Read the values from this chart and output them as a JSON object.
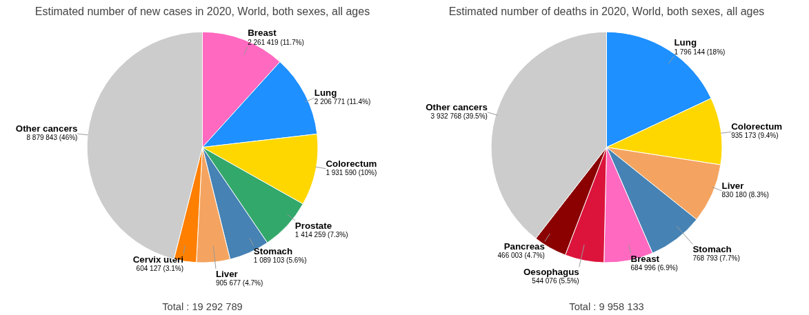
{
  "chart_data": [
    {
      "type": "pie",
      "title": "Estimated number of new cases in 2020, World, both sexes, all ages",
      "categories": [
        "Breast",
        "Lung",
        "Colorectum",
        "Prostate",
        "Stomach",
        "Liver",
        "Cervix uteri",
        "Other cancers"
      ],
      "values": [
        2261419,
        2206771,
        1931590,
        1414259,
        1089103,
        905677,
        604127,
        8879843
      ],
      "value_labels": [
        "2 261 419 (11.7%)",
        "2 206 771 (11.4%)",
        "1 931 590 (10%)",
        "1 414 259 (7.3%)",
        "1 089 103 (5.6%)",
        "905 677 (4.7%)",
        "604 127 (3.1%)",
        "8 879 843 (46%)"
      ],
      "colors": [
        "#ff69c0",
        "#1e90ff",
        "#ffd700",
        "#33a86b",
        "#4682b4",
        "#f4a460",
        "#ff7f00",
        "#cccccc"
      ],
      "annotations": [
        "Total : 19 292 789"
      ]
    },
    {
      "type": "pie",
      "title": "Estimated number of deaths in 2020, World, both sexes, all ages",
      "categories": [
        "Lung",
        "Colorectum",
        "Liver",
        "Stomach",
        "Breast",
        "Oesophagus",
        "Pancreas",
        "Other cancers"
      ],
      "values": [
        1796144,
        935173,
        830180,
        768793,
        684996,
        544076,
        466003,
        3932768
      ],
      "value_labels": [
        "1 796 144 (18%)",
        "935 173 (9.4%)",
        "830 180 (8.3%)",
        "768 793 (7.7%)",
        "684 996 (6.9%)",
        "544 076 (5.5%)",
        "466 003 (4.7%)",
        "3 932 768 (39.5%)"
      ],
      "colors": [
        "#1e90ff",
        "#ffd700",
        "#f4a460",
        "#4682b4",
        "#ff69c0",
        "#dc143c",
        "#8b0000",
        "#cccccc"
      ],
      "annotations": [
        "Total : 9 958 133"
      ]
    }
  ]
}
